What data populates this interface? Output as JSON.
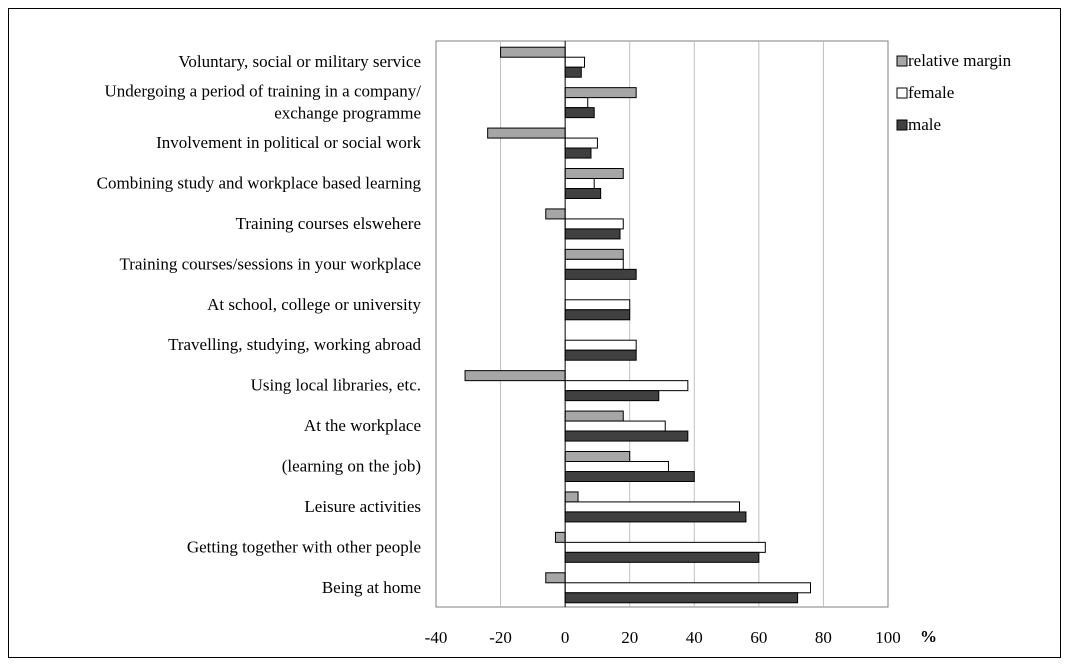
{
  "chart_data": {
    "type": "bar",
    "orientation": "horizontal",
    "xunit": "%",
    "xlim": [
      -40,
      100
    ],
    "xticks": [
      -40,
      -20,
      0,
      20,
      40,
      60,
      80,
      100
    ],
    "grid": true,
    "legend_position": "right",
    "categories": [
      [
        "Voluntary, social or military service"
      ],
      [
        "Undergoing a period of training in a company/",
        "exchange programme"
      ],
      [
        "Involvement in political or social work"
      ],
      [
        "Combining study and workplace based learning"
      ],
      [
        "Training courses elswehere"
      ],
      [
        "Training courses/sessions in your workplace"
      ],
      [
        "At school, college or university"
      ],
      [
        "Travelling, studying, working abroad"
      ],
      [
        "Using local libraries, etc."
      ],
      [
        "At the workplace"
      ],
      [
        "(learning on the job)"
      ],
      [
        "Leisure activities"
      ],
      [
        "Getting together with other people"
      ],
      [
        "Being at home"
      ]
    ],
    "series": [
      {
        "name": "relative margin",
        "color": "#a6a6a6",
        "values": [
          -20,
          22,
          -24,
          18,
          -6,
          18,
          0,
          0,
          -31,
          18,
          20,
          4,
          -3,
          -6
        ]
      },
      {
        "name": "female",
        "color": "#ffffff",
        "values": [
          6,
          7,
          10,
          9,
          18,
          18,
          20,
          22,
          38,
          31,
          32,
          54,
          62,
          76
        ]
      },
      {
        "name": "male",
        "color": "#404040",
        "values": [
          5,
          9,
          8,
          11,
          17,
          22,
          20,
          22,
          29,
          38,
          40,
          56,
          60,
          72
        ]
      }
    ]
  }
}
